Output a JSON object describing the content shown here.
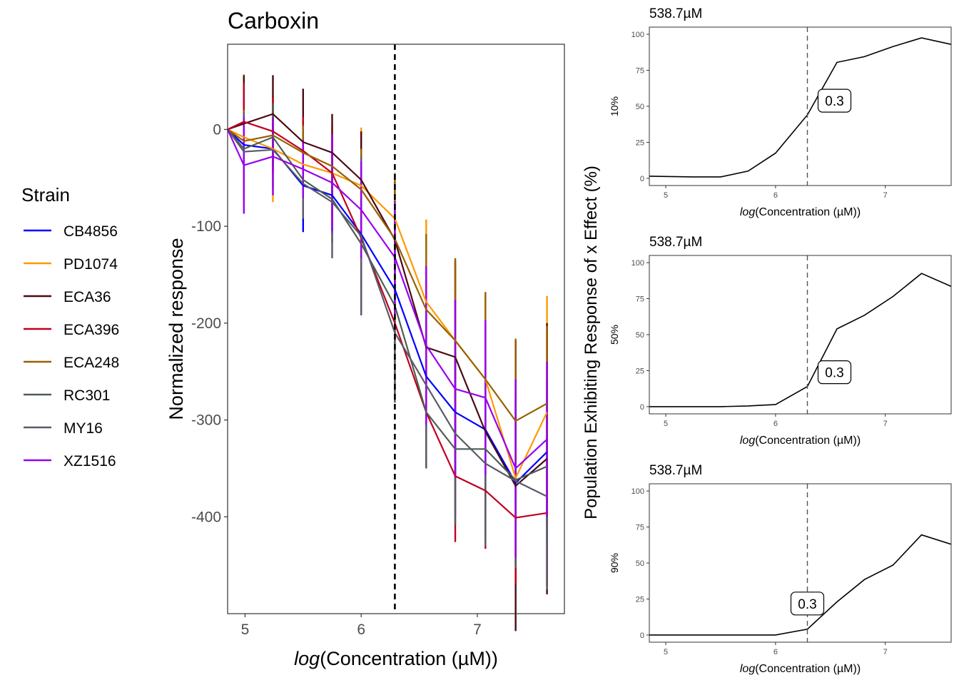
{
  "chart_data": [
    {
      "type": "line",
      "title": "Carboxin",
      "xlabel_italic": "log",
      "xlabel_rest": "(Concentration (µM))",
      "ylabel": "Normalized response",
      "xlim": [
        4.85,
        7.75
      ],
      "ylim": [
        -500,
        88
      ],
      "xticks": [
        "5",
        "6",
        "7"
      ],
      "yticks": [
        "0",
        "-100",
        "-200",
        "-300",
        "-400"
      ],
      "vline_x": 6.29,
      "x": [
        4.85,
        4.99,
        5.24,
        5.5,
        5.75,
        6.0,
        6.29,
        6.56,
        6.81,
        7.07,
        7.33,
        7.6
      ],
      "legend_title": "Strain",
      "series": [
        {
          "name": "CB4856",
          "color": "#0000ff",
          "values": [
            0,
            -16,
            -20,
            -58,
            -68,
            -108,
            -165,
            -255,
            -292,
            -310,
            -365,
            -333
          ],
          "err": [
            0,
            22,
            25,
            48,
            40,
            58,
            55,
            65,
            62,
            70,
            85,
            75
          ]
        },
        {
          "name": "PD1074",
          "color": "#ff9900",
          "values": [
            0,
            -8,
            -20,
            -36,
            -45,
            -58,
            -92,
            -178,
            -218,
            -258,
            -360,
            -292
          ],
          "err": [
            0,
            65,
            55,
            45,
            50,
            60,
            45,
            85,
            80,
            90,
            110,
            120
          ]
        },
        {
          "name": "ECA36",
          "color": "#4a0a14",
          "values": [
            0,
            6,
            16,
            -13,
            -24,
            -52,
            -114,
            -225,
            -235,
            -312,
            -368,
            -340
          ],
          "err": [
            0,
            50,
            40,
            55,
            40,
            50,
            60,
            80,
            100,
            110,
            150,
            140
          ]
        },
        {
          "name": "ECA396",
          "color": "#c00020",
          "values": [
            0,
            8,
            -2,
            -22,
            -45,
            -112,
            -200,
            -292,
            -358,
            -373,
            -401,
            -396
          ],
          "err": [
            0,
            40,
            35,
            35,
            40,
            55,
            80,
            58,
            68,
            60,
            68,
            75
          ]
        },
        {
          "name": "ECA248",
          "color": "#996000",
          "values": [
            0,
            -12,
            -6,
            -24,
            -38,
            -62,
            -113,
            -186,
            -218,
            -258,
            -301,
            -283
          ],
          "err": [
            0,
            32,
            30,
            28,
            30,
            42,
            68,
            78,
            85,
            90,
            85,
            80
          ]
        },
        {
          "name": "RC301",
          "color": "#4d5e55",
          "values": [
            0,
            -20,
            -8,
            -52,
            -72,
            -118,
            -182,
            -292,
            -330,
            -330,
            -362,
            -348
          ],
          "err": [
            0,
            38,
            35,
            40,
            45,
            72,
            100,
            58,
            78,
            80,
            85,
            80
          ]
        },
        {
          "name": "MY16",
          "color": "#5a5a6a",
          "values": [
            0,
            -23,
            -21,
            -56,
            -75,
            -110,
            -210,
            -264,
            -314,
            -345,
            -363,
            -379
          ],
          "err": [
            0,
            38,
            40,
            36,
            58,
            82,
            72,
            80,
            85,
            85,
            90,
            96
          ]
        },
        {
          "name": "XZ1516",
          "color": "#9900ee",
          "values": [
            0,
            -37,
            -28,
            -41,
            -55,
            -83,
            -132,
            -223,
            -268,
            -277,
            -350,
            -320
          ],
          "err": [
            0,
            50,
            40,
            30,
            50,
            50,
            58,
            82,
            92,
            80,
            92,
            80
          ]
        }
      ]
    },
    {
      "type": "line",
      "title": "538.7µM",
      "ylabel": "10%",
      "xlabel_italic": "log",
      "xlabel_rest": "(Concentration (µM))",
      "xlim": [
        4.85,
        7.6
      ],
      "ylim": [
        -5,
        105
      ],
      "xticks": [
        "5",
        "6",
        "7"
      ],
      "yticks": [
        "0",
        "25",
        "50",
        "75",
        "100"
      ],
      "vline_x": 6.29,
      "annotation": "0.3",
      "x": [
        4.85,
        5.24,
        5.5,
        5.75,
        6.0,
        6.29,
        6.56,
        6.81,
        7.07,
        7.33,
        7.6
      ],
      "values": [
        1.5,
        1,
        1,
        5,
        17.5,
        44,
        80.5,
        84.5,
        91.5,
        97.5,
        93
      ]
    },
    {
      "type": "line",
      "title": "538.7µM",
      "ylabel": "50%",
      "xlabel_italic": "log",
      "xlabel_rest": "(Concentration (µM))",
      "xlim": [
        4.85,
        7.6
      ],
      "ylim": [
        -5,
        105
      ],
      "xticks": [
        "5",
        "6",
        "7"
      ],
      "yticks": [
        "0",
        "25",
        "50",
        "75",
        "100"
      ],
      "vline_x": 6.29,
      "annotation": "0.3",
      "x": [
        4.85,
        5.24,
        5.5,
        5.75,
        6.0,
        6.29,
        6.56,
        6.81,
        7.07,
        7.33,
        7.6
      ],
      "values": [
        0,
        0,
        0,
        0.5,
        1.5,
        14,
        54,
        63.5,
        76.5,
        92.5,
        83.5
      ]
    },
    {
      "type": "line",
      "title": "538.7µM",
      "ylabel": "90%",
      "xlabel_italic": "log",
      "xlabel_rest": "(Concentration (µM))",
      "xlim": [
        4.85,
        7.6
      ],
      "ylim": [
        -5,
        105
      ],
      "xticks": [
        "5",
        "6",
        "7"
      ],
      "yticks": [
        "0",
        "25",
        "50",
        "75",
        "100"
      ],
      "vline_x": 6.29,
      "annotation": "0.3",
      "x": [
        4.85,
        5.24,
        5.5,
        5.75,
        6.0,
        6.29,
        6.56,
        6.81,
        7.07,
        7.33,
        7.6
      ],
      "values": [
        0,
        0,
        0,
        0,
        0,
        4,
        23,
        38.5,
        48.5,
        69.5,
        63
      ]
    }
  ],
  "shared_ylabel": "Population Exhibiting Response of x Effect (%)"
}
